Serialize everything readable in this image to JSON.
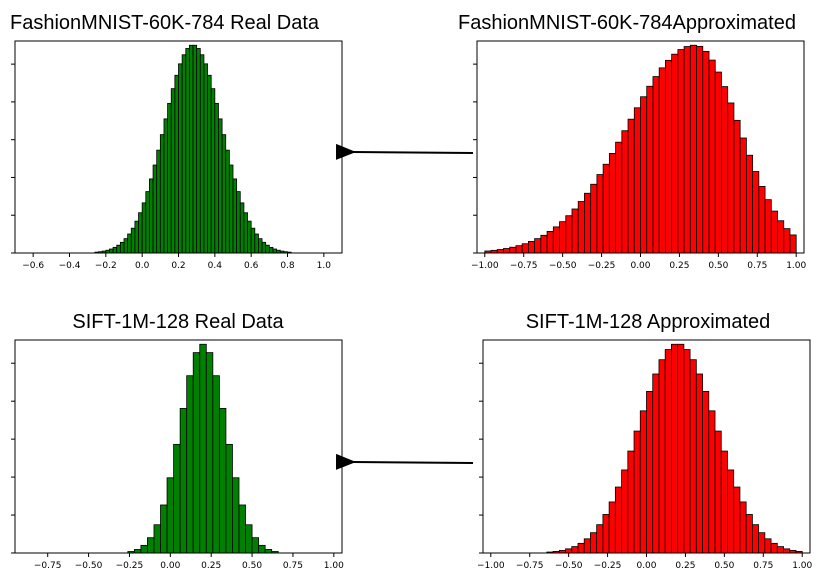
{
  "chart_data": [
    {
      "type": "bar",
      "title": "FashionMNIST-60K-784 Real Data",
      "xlabel": "",
      "ylabel": "",
      "xlim": [
        -0.7,
        1.1
      ],
      "xticks": [
        -0.6,
        -0.4,
        -0.2,
        0.0,
        0.2,
        0.4,
        0.6,
        0.8,
        1.0
      ],
      "xtick_labels": [
        "−0.6",
        "−0.4",
        "−0.2",
        "0.0",
        "0.2",
        "0.4",
        "0.6",
        "0.8",
        "1.0"
      ],
      "bin_edges_range": [
        -0.4,
        0.9
      ],
      "bin_width": 0.02,
      "mean": 0.28,
      "std": 0.16,
      "skew": 0,
      "color": "#008000",
      "ylim": [
        0,
        1.0
      ]
    },
    {
      "type": "bar",
      "title": "FashionMNIST-60K-784Approximated",
      "xlabel": "",
      "ylabel": "",
      "xlim": [
        -1.05,
        1.05
      ],
      "xticks": [
        -1.0,
        -0.75,
        -0.5,
        -0.25,
        0.0,
        0.25,
        0.5,
        0.75,
        1.0
      ],
      "xtick_labels": [
        "−1.00",
        "−0.75",
        "−0.50",
        "−0.25",
        "0.00",
        "0.25",
        "0.50",
        "0.75",
        "1.00"
      ],
      "bin_edges_range": [
        -1.0,
        1.0
      ],
      "bin_width": 0.04,
      "mean": 0.35,
      "std": 0.38,
      "skew": -1,
      "color": "#ff0000",
      "ylim": [
        0,
        1.0
      ]
    },
    {
      "type": "bar",
      "title": "SIFT-1M-128 Real Data",
      "xlabel": "",
      "ylabel": "",
      "xlim": [
        -0.95,
        1.05
      ],
      "xticks": [
        -0.75,
        -0.5,
        -0.25,
        0.0,
        0.25,
        0.5,
        0.75,
        1.0
      ],
      "xtick_labels": [
        "−0.75",
        "−0.50",
        "−0.25",
        "0.00",
        "0.25",
        "0.50",
        "0.75",
        "1.00"
      ],
      "bin_edges_range": [
        -0.5,
        1.0
      ],
      "bin_width": 0.04,
      "mean": 0.2,
      "std": 0.14,
      "skew": 0,
      "color": "#008000",
      "ylim": [
        0,
        1.0
      ]
    },
    {
      "type": "bar",
      "title": "SIFT-1M-128 Approximated",
      "xlabel": "",
      "ylabel": "",
      "xlim": [
        -1.05,
        1.05
      ],
      "xticks": [
        -1.0,
        -0.75,
        -0.5,
        -0.25,
        0.0,
        0.25,
        0.5,
        0.75,
        1.0
      ],
      "xtick_labels": [
        "−1.00",
        "−0.75",
        "−0.50",
        "−0.25",
        "0.00",
        "0.25",
        "0.50",
        "0.75",
        "1.00"
      ],
      "bin_edges_range": [
        -1.0,
        1.0
      ],
      "bin_width": 0.04,
      "mean": 0.2,
      "std": 0.25,
      "skew": 0,
      "color": "#ff0000",
      "ylim": [
        0,
        1.0
      ]
    }
  ],
  "arrows": [
    {
      "from": "FashionMNIST-60K-784Approximated",
      "to": "FashionMNIST-60K-784 Real Data"
    },
    {
      "from": "SIFT-1M-128 Approximated",
      "to": "SIFT-1M-128 Real Data"
    }
  ]
}
